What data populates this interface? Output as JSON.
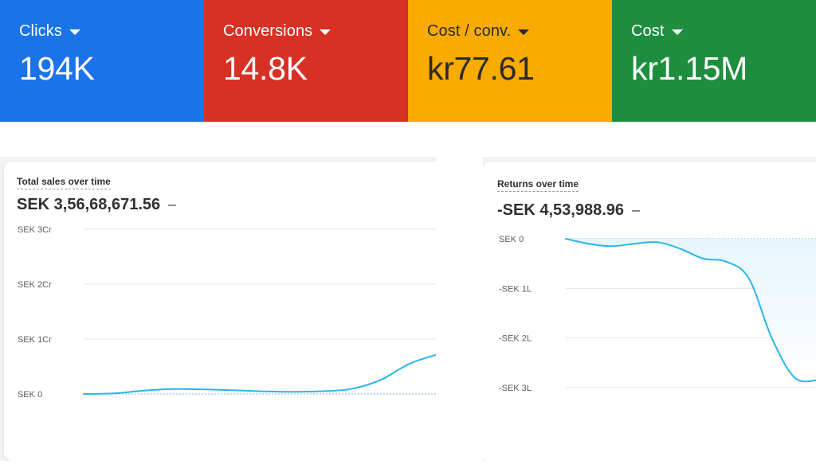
{
  "metrics": [
    {
      "label": "Clicks",
      "value": "194K",
      "color": "#1a73e8"
    },
    {
      "label": "Conversions",
      "value": "14.8K",
      "color": "#d93025"
    },
    {
      "label": "Cost / conv.",
      "value": "kr77.61",
      "color": "#f9ab00"
    },
    {
      "label": "Cost",
      "value": "kr1.15M",
      "color": "#1e8e3e"
    }
  ],
  "sales_card": {
    "title": "Total sales over time",
    "total": "SEK 3,56,68,671.56"
  },
  "returns_card": {
    "title": "Returns over time",
    "total": "-SEK 4,53,988.96"
  },
  "chart_data": [
    {
      "type": "line",
      "title": "Total sales over time",
      "y_tick_labels": [
        "SEK 3Cr",
        "SEK 2Cr",
        "SEK 1Cr",
        "SEK 0"
      ],
      "ylim": [
        0,
        30000000
      ],
      "line_color": "#29b6e8",
      "grid": true,
      "series": [
        {
          "x": [
            0,
            1,
            2,
            3,
            4,
            5,
            6,
            7,
            8,
            9,
            10,
            11,
            12
          ],
          "values": [
            0,
            100000,
            600000,
            900000,
            850000,
            700000,
            500000,
            400000,
            500000,
            900000,
            2500000,
            5500000,
            7300000
          ]
        }
      ]
    },
    {
      "type": "area",
      "title": "Returns over time",
      "y_tick_labels": [
        "SEK 0",
        "-SEK 1L",
        "-SEK 2L",
        "-SEK 3L"
      ],
      "ylim": [
        -300000,
        0
      ],
      "line_color": "#29b6e8",
      "grid": true,
      "series": [
        {
          "x": [
            0,
            1,
            2,
            3,
            4,
            5,
            6,
            7,
            8,
            9,
            10,
            11
          ],
          "values": [
            0,
            -10000,
            -15000,
            -10000,
            -7000,
            -20000,
            -40000,
            -46000,
            -80000,
            -200000,
            -280000,
            -285000
          ]
        }
      ]
    }
  ]
}
